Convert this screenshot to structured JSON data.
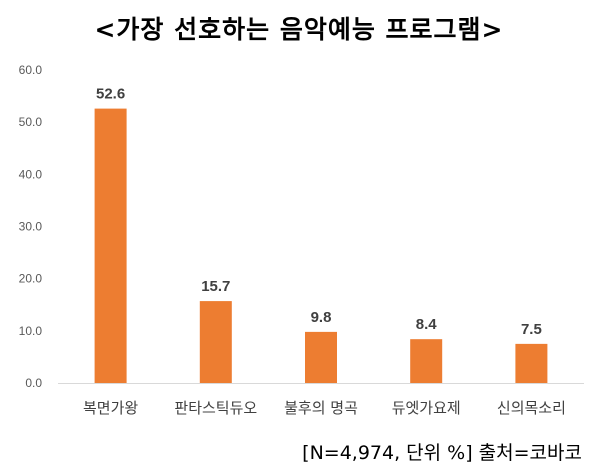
{
  "chart_data": {
    "type": "bar",
    "title": "<가장 선호하는 음악예능 프로그램>",
    "categories": [
      "복면가왕",
      "판타스틱듀오",
      "불후의 명곡",
      "듀엣가요제",
      "신의목소리"
    ],
    "values": [
      52.6,
      15.7,
      9.8,
      8.4,
      7.5
    ],
    "value_labels": [
      "52.6",
      "15.7",
      "9.8",
      "8.4",
      "7.5"
    ],
    "y_ticks": [
      "0.0",
      "10.0",
      "20.0",
      "30.0",
      "40.0",
      "50.0",
      "60.0"
    ],
    "ylim": [
      0,
      60
    ],
    "grid": false,
    "bar_color": "#ED7D31",
    "footnote": "[N=4,974,  단위  %]  출처=코바코"
  }
}
